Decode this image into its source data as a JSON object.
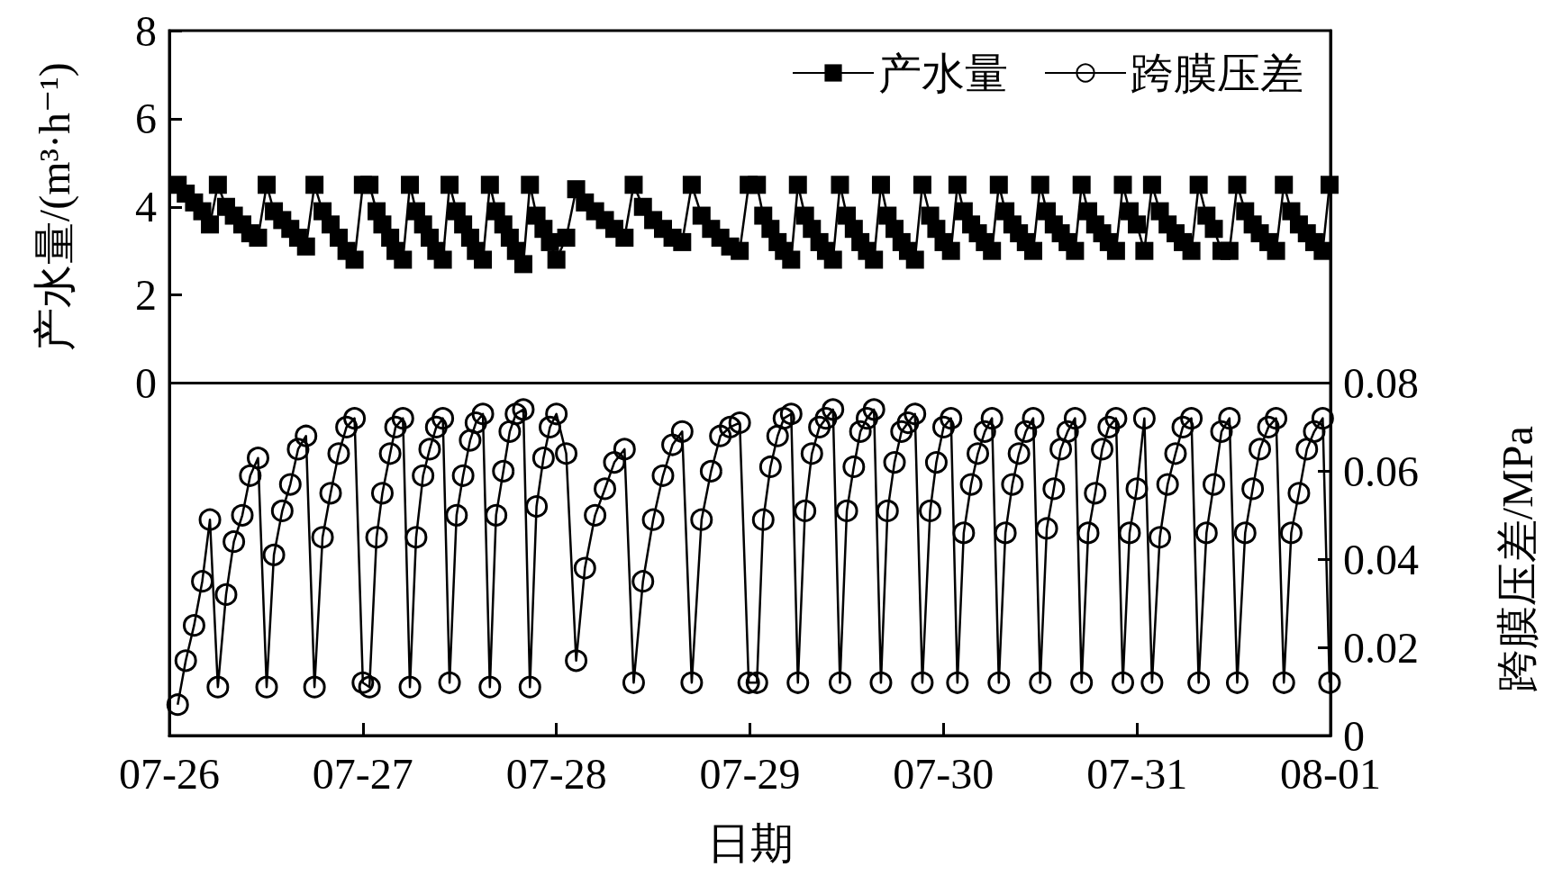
{
  "chart_data": {
    "type": "line",
    "xlabel": "日期",
    "ylabel": "产水量/(m³·h⁻¹)",
    "y2label": "跨膜压差/MPa",
    "legend": "top right",
    "grid": false,
    "xlim": [
      "--07-26",
      "--08-01"
    ],
    "xticks": [
      {
        "value": "--07-26",
        "label": "07-26"
      },
      {
        "value": "--07-27",
        "label": "07-27"
      },
      {
        "value": "--07-28",
        "label": "07-28"
      },
      {
        "value": "--07-29",
        "label": "07-29"
      },
      {
        "value": "--07-30",
        "label": "07-30"
      },
      {
        "value": "--07-31",
        "label": "07-31"
      },
      {
        "value": "--08-01",
        "label": "08-01"
      }
    ],
    "ylim": [
      -8,
      8
    ],
    "yticks": [
      0,
      2,
      4,
      6,
      8
    ],
    "y2lim": [
      0,
      0.16
    ],
    "y2ticks": [
      0,
      0.02,
      0.04,
      0.06,
      0.08
    ],
    "ref_lines": [
      {
        "axis": "y",
        "value": 0,
        "color": "#000000",
        "line_style": "solid"
      }
    ],
    "x": [
      "--07-26T01:02",
      "--07-26T02:02",
      "--07-26T03:04",
      "--07-26T04:05",
      "--07-26T05:02",
      "--07-26T06:01",
      "--07-26T07:02",
      "--07-26T08:00",
      "--07-26T09:03",
      "--07-26T10:02",
      "--07-26T11:00",
      "--07-26T12:04",
      "--07-26T12:58",
      "--07-26T14:00",
      "--07-26T15:00",
      "--07-26T15:58",
      "--07-26T16:57",
      "--07-26T18:00",
      "--07-26T19:00",
      "--07-26T20:00",
      "--07-26T21:00",
      "--07-26T21:58",
      "--07-26T22:58",
      "--07-27T00:00",
      "--07-27T00:49",
      "--07-27T01:42",
      "--07-27T02:25",
      "--07-27T03:23",
      "--07-27T04:03",
      "--07-27T04:58",
      "--07-27T05:50",
      "--07-27T06:36",
      "--07-27T07:28",
      "--07-27T08:17",
      "--07-27T09:06",
      "--07-27T09:55",
      "--07-27T10:45",
      "--07-27T11:37",
      "--07-27T12:26",
      "--07-27T13:18",
      "--07-27T14:01",
      "--07-27T14:53",
      "--07-27T15:45",
      "--07-27T16:31",
      "--07-27T17:25",
      "--07-27T18:13",
      "--07-27T18:59",
      "--07-27T19:54",
      "--07-27T20:43",
      "--07-27T21:32",
      "--07-27T22:24",
      "--07-27T23:12",
      "--07-28T00:00",
      "--07-28T01:13",
      "--07-28T02:27",
      "--07-28T03:32",
      "--07-28T04:48",
      "--07-28T06:01",
      "--07-28T07:11",
      "--07-28T08:27",
      "--07-28T09:35",
      "--07-28T10:44",
      "--07-28T12:00",
      "--07-28T13:13",
      "--07-28T14:24",
      "--07-28T15:36",
      "--07-28T16:47",
      "--07-28T18:00",
      "--07-28T19:11",
      "--07-28T20:20",
      "--07-28T21:33",
      "--07-28T22:44",
      "--07-28T23:51",
      "--07-29T00:52",
      "--07-29T01:39",
      "--07-29T02:33",
      "--07-29T03:26",
      "--07-29T04:13",
      "--07-29T05:07",
      "--07-29T05:57",
      "--07-29T06:50",
      "--07-29T07:41",
      "--07-29T08:37",
      "--07-29T09:26",
      "--07-29T10:18",
      "--07-29T11:10",
      "--07-29T12:01",
      "--07-29T12:53",
      "--07-29T13:42",
      "--07-29T14:31",
      "--07-29T15:23",
      "--07-29T16:15",
      "--07-29T17:04",
      "--07-29T17:56",
      "--07-29T18:48",
      "--07-29T19:36",
      "--07-29T20:28",
      "--07-29T21:23",
      "--07-29T22:21",
      "--07-29T23:07",
      "--07-30T00:01",
      "--07-30T00:56",
      "--07-30T01:44",
      "--07-30T02:31",
      "--07-30T03:26",
      "--07-30T04:16",
      "--07-30T05:08",
      "--07-30T06:01",
      "--07-30T06:52",
      "--07-30T07:41",
      "--07-30T08:33",
      "--07-30T09:22",
      "--07-30T10:13",
      "--07-30T11:08",
      "--07-30T12:00",
      "--07-30T12:49",
      "--07-30T13:41",
      "--07-30T14:33",
      "--07-30T15:24",
      "--07-30T16:19",
      "--07-30T17:08",
      "--07-30T17:57",
      "--07-30T18:49",
      "--07-30T19:41",
      "--07-30T20:30",
      "--07-30T21:24",
      "--07-30T22:15",
      "--07-30T23:05",
      "--07-30T23:59",
      "--07-31T00:55",
      "--07-31T01:52",
      "--07-31T02:50",
      "--07-31T03:48",
      "--07-31T04:47",
      "--07-31T05:41",
      "--07-31T06:45",
      "--07-31T07:39",
      "--07-31T08:37",
      "--07-31T09:32",
      "--07-31T10:29",
      "--07-31T11:28",
      "--07-31T12:26",
      "--07-31T13:25",
      "--07-31T14:21",
      "--07-31T15:14",
      "--07-31T16:18",
      "--07-31T17:15",
      "--07-31T18:13",
      "--07-31T19:08",
      "--07-31T20:05",
      "--07-31T21:04",
      "--07-31T21:59",
      "--07-31T23:02",
      "--07-31T23:53"
    ],
    "series": [
      {
        "name": "产水量",
        "color": "#000000",
        "marker": "square",
        "values": [
          4.5,
          4.3,
          4.1,
          3.9,
          3.6,
          4.5,
          4.0,
          3.8,
          3.6,
          3.4,
          3.3,
          4.5,
          3.9,
          3.7,
          3.5,
          3.3,
          3.1,
          4.5,
          3.9,
          3.6,
          3.3,
          3.0,
          2.8,
          4.5,
          4.5,
          3.9,
          3.6,
          3.3,
          3.0,
          2.8,
          4.5,
          3.9,
          3.6,
          3.3,
          3.0,
          2.8,
          4.5,
          3.9,
          3.6,
          3.3,
          3.0,
          2.8,
          4.5,
          3.9,
          3.6,
          3.3,
          3.0,
          2.7,
          4.5,
          3.8,
          3.5,
          3.2,
          2.8,
          3.3,
          4.4,
          4.1,
          3.9,
          3.7,
          3.5,
          3.3,
          4.5,
          4.0,
          3.7,
          3.5,
          3.3,
          3.2,
          4.5,
          3.8,
          3.5,
          3.3,
          3.1,
          3.0,
          4.5,
          4.5,
          3.8,
          3.5,
          3.2,
          3.0,
          2.8,
          4.5,
          3.8,
          3.5,
          3.2,
          3.0,
          2.8,
          4.5,
          3.8,
          3.5,
          3.2,
          3.0,
          2.8,
          4.5,
          3.8,
          3.5,
          3.2,
          3.0,
          2.8,
          4.5,
          3.8,
          3.5,
          3.2,
          3.0,
          4.5,
          3.9,
          3.6,
          3.4,
          3.2,
          3.0,
          4.5,
          3.9,
          3.6,
          3.4,
          3.2,
          3.0,
          4.5,
          3.9,
          3.6,
          3.4,
          3.2,
          3.0,
          4.5,
          3.9,
          3.6,
          3.4,
          3.2,
          3.0,
          4.5,
          3.9,
          3.6,
          3.0,
          4.5,
          3.9,
          3.6,
          3.4,
          3.2,
          3.0,
          4.5,
          3.8,
          3.5,
          3.0,
          3.0,
          4.5,
          3.9,
          3.6,
          3.4,
          3.2,
          3.0,
          4.5,
          3.9,
          3.6,
          3.4,
          3.2,
          3.0,
          4.5
        ]
      },
      {
        "name": "跨膜压差",
        "color": "#000000",
        "marker": "circle",
        "axis": "y2",
        "values": [
          0.007,
          0.017,
          0.025,
          0.035,
          0.049,
          0.011,
          0.032,
          0.044,
          0.05,
          0.059,
          0.063,
          0.011,
          0.041,
          0.051,
          0.057,
          0.065,
          0.068,
          0.011,
          0.045,
          0.055,
          0.064,
          0.07,
          0.072,
          0.012,
          0.011,
          0.045,
          0.055,
          0.064,
          0.07,
          0.072,
          0.011,
          0.045,
          0.059,
          0.065,
          0.07,
          0.072,
          0.012,
          0.05,
          0.059,
          0.067,
          0.071,
          0.073,
          0.011,
          0.05,
          0.06,
          0.069,
          0.073,
          0.074,
          0.011,
          0.052,
          0.063,
          0.07,
          0.073,
          0.064,
          0.017,
          0.038,
          0.05,
          0.056,
          0.062,
          0.065,
          0.012,
          0.035,
          0.049,
          0.059,
          0.066,
          0.069,
          0.012,
          0.049,
          0.06,
          0.068,
          0.07,
          0.071,
          0.012,
          0.012,
          0.049,
          0.061,
          0.068,
          0.072,
          0.073,
          0.012,
          0.051,
          0.064,
          0.07,
          0.072,
          0.074,
          0.012,
          0.051,
          0.061,
          0.069,
          0.072,
          0.074,
          0.012,
          0.051,
          0.062,
          0.069,
          0.071,
          0.073,
          0.012,
          0.051,
          0.062,
          0.07,
          0.072,
          0.012,
          0.046,
          0.057,
          0.064,
          0.069,
          0.072,
          0.012,
          0.046,
          0.057,
          0.064,
          0.069,
          0.072,
          0.012,
          0.047,
          0.056,
          0.065,
          0.069,
          0.072,
          0.012,
          0.046,
          0.055,
          0.065,
          0.07,
          0.072,
          0.012,
          0.046,
          0.056,
          0.072,
          0.012,
          0.045,
          0.057,
          0.064,
          0.07,
          0.072,
          0.012,
          0.046,
          0.057,
          0.069,
          0.072,
          0.012,
          0.046,
          0.056,
          0.065,
          0.07,
          0.072,
          0.012,
          0.046,
          0.055,
          0.065,
          0.069,
          0.072,
          0.012
        ]
      }
    ]
  }
}
